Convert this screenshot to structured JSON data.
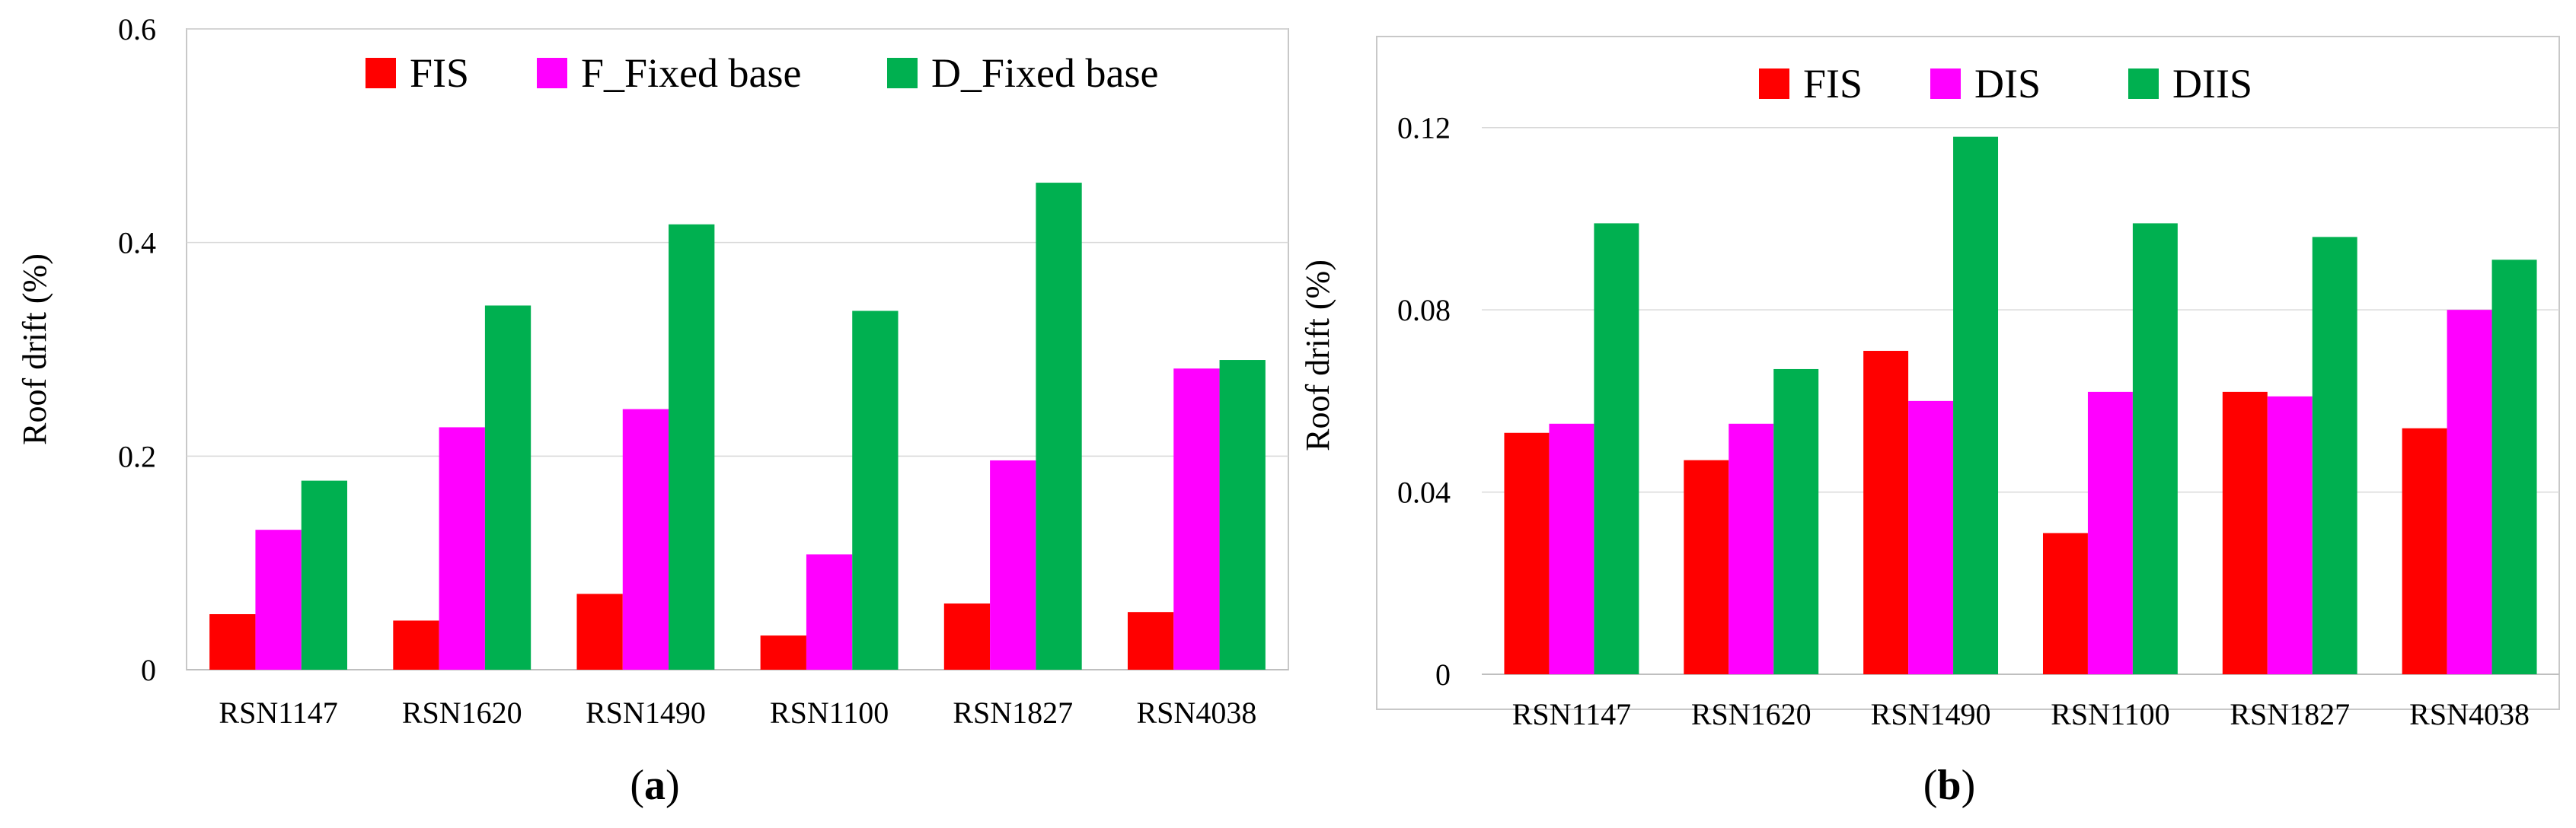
{
  "chart_data": [
    {
      "id": "a",
      "type": "bar",
      "caption": "a",
      "title": "",
      "xlabel": "",
      "ylabel": "Roof drift (%)",
      "ylim": [
        0,
        0.6
      ],
      "yticks": [
        "0",
        "0.2",
        "0.4",
        "0.6"
      ],
      "yticks_values": [
        0,
        0.2,
        0.4,
        0.6
      ],
      "grid": true,
      "legend_position": "top",
      "categories": [
        "RSN1147",
        "RSN1620",
        "RSN1490",
        "RSN1100",
        "RSN1827",
        "RSN4038"
      ],
      "series": [
        {
          "name": "FIS",
          "color": "#ff0000",
          "values": [
            0.052,
            0.046,
            0.071,
            0.032,
            0.062,
            0.054
          ]
        },
        {
          "name": "F_Fixed base",
          "color": "#ff00ff",
          "values": [
            0.131,
            0.227,
            0.244,
            0.108,
            0.196,
            0.282
          ]
        },
        {
          "name": "D_Fixed base",
          "color": "#00b050",
          "values": [
            0.177,
            0.341,
            0.417,
            0.336,
            0.456,
            0.29
          ]
        }
      ]
    },
    {
      "id": "b",
      "type": "bar",
      "caption": "b",
      "title": "",
      "xlabel": "",
      "ylabel": "Roof drift (%)",
      "ylim": [
        0,
        0.14
      ],
      "yticks": [
        "0",
        "0.04",
        "0.08",
        "0.12"
      ],
      "yticks_values": [
        0,
        0.04,
        0.08,
        0.12
      ],
      "grid": true,
      "legend_position": "top",
      "categories": [
        "RSN1147",
        "RSN1620",
        "RSN1490",
        "RSN1100",
        "RSN1827",
        "RSN4038"
      ],
      "series": [
        {
          "name": "FIS",
          "color": "#ff0000",
          "values": [
            0.053,
            0.047,
            0.071,
            0.031,
            0.062,
            0.054
          ]
        },
        {
          "name": "DIS",
          "color": "#ff00ff",
          "values": [
            0.055,
            0.055,
            0.06,
            0.062,
            0.061,
            0.08
          ]
        },
        {
          "name": "DIIS",
          "color": "#00b050",
          "values": [
            0.099,
            0.067,
            0.118,
            0.099,
            0.096,
            0.091
          ]
        }
      ]
    }
  ]
}
